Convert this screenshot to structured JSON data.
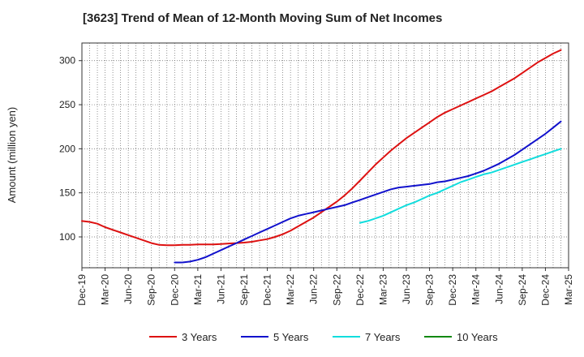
{
  "chart_data": {
    "type": "line",
    "title": "[3623]  Trend of Mean of 12-Month Moving Sum of Net Incomes",
    "xlabel": "",
    "ylabel": "Amount (million yen)",
    "ylim": [
      65,
      320
    ],
    "yticks": [
      100,
      150,
      200,
      250,
      300
    ],
    "x_ticks": [
      "Dec-19",
      "Mar-20",
      "Jun-20",
      "Sep-20",
      "Dec-20",
      "Mar-21",
      "Jun-21",
      "Sep-21",
      "Dec-21",
      "Mar-22",
      "Jun-22",
      "Sep-22",
      "Dec-22",
      "Mar-23",
      "Jun-23",
      "Sep-23",
      "Dec-23",
      "Mar-24",
      "Jun-24",
      "Sep-24",
      "Dec-24",
      "Mar-25"
    ],
    "grid": true,
    "legend_position": "bottom",
    "series": [
      {
        "name": "3 Years",
        "color": "#dd1111",
        "points": [
          [
            "Dec-19",
            118
          ],
          [
            "Jan-20",
            117
          ],
          [
            "Feb-20",
            115
          ],
          [
            "Mar-20",
            111
          ],
          [
            "Apr-20",
            108
          ],
          [
            "May-20",
            105
          ],
          [
            "Jun-20",
            102
          ],
          [
            "Jul-20",
            99
          ],
          [
            "Aug-20",
            96
          ],
          [
            "Sep-20",
            93
          ],
          [
            "Oct-20",
            91
          ],
          [
            "Nov-20",
            90.5
          ],
          [
            "Dec-20",
            90.5
          ],
          [
            "Jan-21",
            91
          ],
          [
            "Feb-21",
            91
          ],
          [
            "Mar-21",
            91.5
          ],
          [
            "Apr-21",
            91.5
          ],
          [
            "May-21",
            91.5
          ],
          [
            "Jun-21",
            92
          ],
          [
            "Jul-21",
            92.5
          ],
          [
            "Aug-21",
            93
          ],
          [
            "Sep-21",
            93.5
          ],
          [
            "Oct-21",
            94.5
          ],
          [
            "Nov-21",
            96
          ],
          [
            "Dec-21",
            97.5
          ],
          [
            "Jan-22",
            100
          ],
          [
            "Feb-22",
            103
          ],
          [
            "Mar-22",
            107
          ],
          [
            "Apr-22",
            112
          ],
          [
            "May-22",
            117
          ],
          [
            "Jun-22",
            122
          ],
          [
            "Jul-22",
            128
          ],
          [
            "Aug-22",
            134
          ],
          [
            "Sep-22",
            140
          ],
          [
            "Oct-22",
            147
          ],
          [
            "Nov-22",
            155
          ],
          [
            "Dec-22",
            164
          ],
          [
            "Jan-23",
            173
          ],
          [
            "Feb-23",
            182
          ],
          [
            "Mar-23",
            190
          ],
          [
            "Apr-23",
            198
          ],
          [
            "May-23",
            205
          ],
          [
            "Jun-23",
            212
          ],
          [
            "Jul-23",
            218
          ],
          [
            "Aug-23",
            224
          ],
          [
            "Sep-23",
            230
          ],
          [
            "Oct-23",
            236
          ],
          [
            "Nov-23",
            241
          ],
          [
            "Dec-23",
            245
          ],
          [
            "Jan-24",
            249
          ],
          [
            "Feb-24",
            253
          ],
          [
            "Mar-24",
            257
          ],
          [
            "Apr-24",
            261
          ],
          [
            "May-24",
            265
          ],
          [
            "Jun-24",
            270
          ],
          [
            "Jul-24",
            275
          ],
          [
            "Aug-24",
            280
          ],
          [
            "Sep-24",
            286
          ],
          [
            "Oct-24",
            292
          ],
          [
            "Nov-24",
            298
          ],
          [
            "Dec-24",
            303
          ],
          [
            "Jan-25",
            308
          ],
          [
            "Feb-25",
            312
          ]
        ]
      },
      {
        "name": "5 Years",
        "color": "#1111cc",
        "points": [
          [
            "Dec-20",
            71
          ],
          [
            "Jan-21",
            71
          ],
          [
            "Feb-21",
            72
          ],
          [
            "Mar-21",
            74
          ],
          [
            "Apr-21",
            77
          ],
          [
            "May-21",
            81
          ],
          [
            "Jun-21",
            85
          ],
          [
            "Jul-21",
            89
          ],
          [
            "Aug-21",
            93
          ],
          [
            "Sep-21",
            97
          ],
          [
            "Oct-21",
            101
          ],
          [
            "Nov-21",
            105
          ],
          [
            "Dec-21",
            109
          ],
          [
            "Jan-22",
            113
          ],
          [
            "Feb-22",
            117
          ],
          [
            "Mar-22",
            121
          ],
          [
            "Apr-22",
            124
          ],
          [
            "May-22",
            126
          ],
          [
            "Jun-22",
            128
          ],
          [
            "Jul-22",
            130
          ],
          [
            "Aug-22",
            132
          ],
          [
            "Sep-22",
            134
          ],
          [
            "Oct-22",
            136
          ],
          [
            "Nov-22",
            139
          ],
          [
            "Dec-22",
            142
          ],
          [
            "Jan-23",
            145
          ],
          [
            "Feb-23",
            148
          ],
          [
            "Mar-23",
            151
          ],
          [
            "Apr-23",
            154
          ],
          [
            "May-23",
            156
          ],
          [
            "Jun-23",
            157
          ],
          [
            "Jul-23",
            158
          ],
          [
            "Aug-23",
            159
          ],
          [
            "Sep-23",
            160
          ],
          [
            "Oct-23",
            162
          ],
          [
            "Nov-23",
            163
          ],
          [
            "Dec-23",
            165
          ],
          [
            "Jan-24",
            167
          ],
          [
            "Feb-24",
            169
          ],
          [
            "Mar-24",
            172
          ],
          [
            "Apr-24",
            175
          ],
          [
            "May-24",
            179
          ],
          [
            "Jun-24",
            183
          ],
          [
            "Jul-24",
            188
          ],
          [
            "Aug-24",
            193
          ],
          [
            "Sep-24",
            199
          ],
          [
            "Oct-24",
            205
          ],
          [
            "Nov-24",
            211
          ],
          [
            "Dec-24",
            217
          ],
          [
            "Jan-25",
            224
          ],
          [
            "Feb-25",
            231
          ]
        ]
      },
      {
        "name": "7 Years",
        "color": "#11dddd",
        "points": [
          [
            "Dec-22",
            116
          ],
          [
            "Jan-23",
            118
          ],
          [
            "Feb-23",
            121
          ],
          [
            "Mar-23",
            124
          ],
          [
            "Apr-23",
            128
          ],
          [
            "May-23",
            132
          ],
          [
            "Jun-23",
            136
          ],
          [
            "Jul-23",
            139
          ],
          [
            "Aug-23",
            143
          ],
          [
            "Sep-23",
            147
          ],
          [
            "Oct-23",
            150
          ],
          [
            "Nov-23",
            154
          ],
          [
            "Dec-23",
            158
          ],
          [
            "Jan-24",
            162
          ],
          [
            "Feb-24",
            165
          ],
          [
            "Mar-24",
            168
          ],
          [
            "Apr-24",
            171
          ],
          [
            "May-24",
            173
          ],
          [
            "Jun-24",
            176
          ],
          [
            "Jul-24",
            179
          ],
          [
            "Aug-24",
            182
          ],
          [
            "Sep-24",
            185
          ],
          [
            "Oct-24",
            188
          ],
          [
            "Nov-24",
            191
          ],
          [
            "Dec-24",
            194
          ],
          [
            "Jan-25",
            197
          ],
          [
            "Feb-25",
            200
          ]
        ]
      },
      {
        "name": "10 Years",
        "color": "#118811",
        "points": []
      }
    ]
  }
}
